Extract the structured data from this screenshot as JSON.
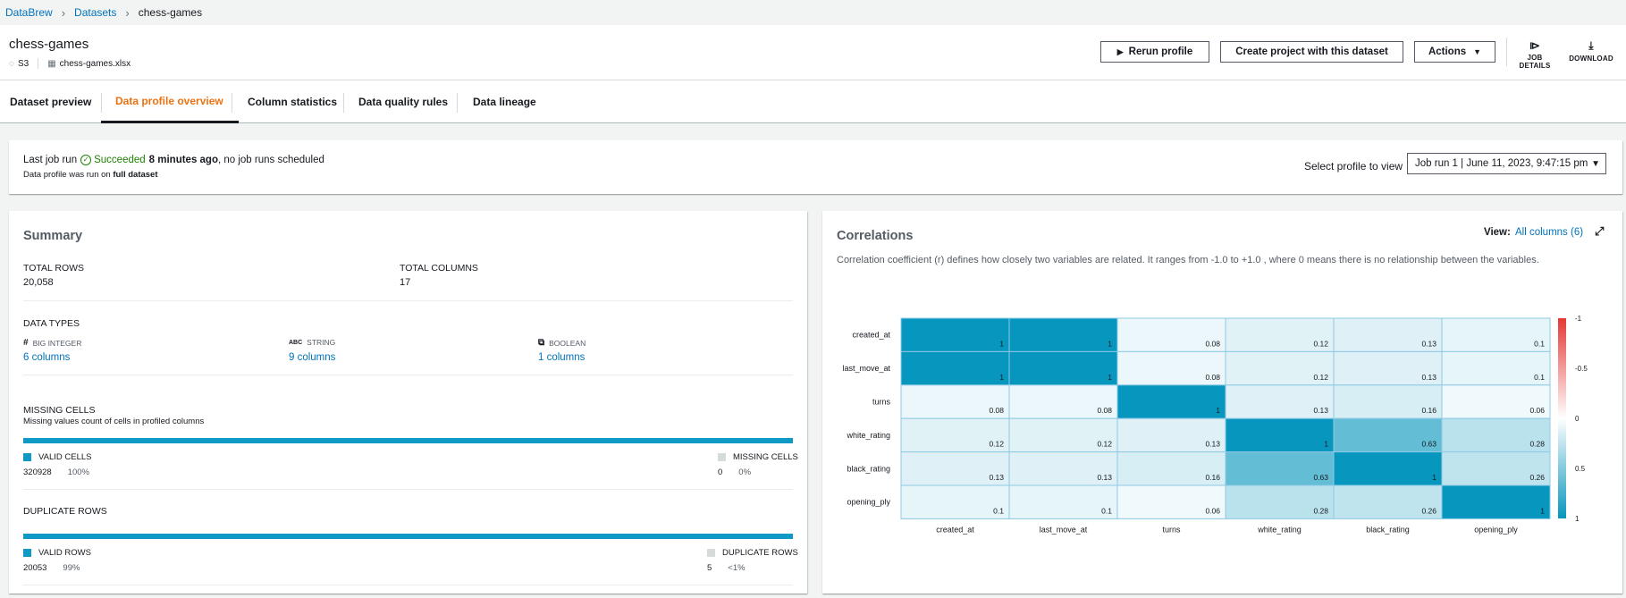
{
  "breadcrumb": [
    "DataBrew",
    "Datasets",
    "chess-games"
  ],
  "header": {
    "title": "chess-games",
    "source": "S3",
    "file": "chess-games.xlsx",
    "rerun_label": "Rerun profile",
    "create_label": "Create project with this dataset",
    "actions_label": "Actions",
    "job_details_label": "JOB DETAILS",
    "download_label": "DOWNLOAD"
  },
  "tabs": [
    "Dataset preview",
    "Data profile overview",
    "Column statistics",
    "Data quality rules",
    "Data lineage"
  ],
  "job": {
    "prefix": "Last job run",
    "status": "Succeeded",
    "ago": "8 minutes ago",
    "suffix": ", no job runs scheduled",
    "sub_prefix": "Data profile was run on",
    "sub_bold": "full dataset",
    "select_label": "Select profile to view",
    "select_value": "Job run 1 | June 11, 2023, 9:47:15 pm"
  },
  "summary": {
    "title": "Summary",
    "total_rows_label": "TOTAL ROWS",
    "total_rows": "20,058",
    "total_cols_label": "TOTAL COLUMNS",
    "total_cols": "17",
    "data_types_label": "DATA TYPES",
    "types": [
      {
        "icon": "#",
        "name": "BIG INTEGER",
        "count": "6 columns"
      },
      {
        "icon": "ABC",
        "name": "STRING",
        "count": "9 columns"
      },
      {
        "icon": "⧉",
        "name": "BOOLEAN",
        "count": "1 columns"
      }
    ],
    "missing_label": "MISSING CELLS",
    "missing_sub": "Missing values count of cells in profiled columns",
    "valid_cells_label": "VALID CELLS",
    "valid_cells": "320928",
    "valid_cells_pct": "100%",
    "missing_cells_label": "MISSING CELLS",
    "missing_cells": "0",
    "missing_cells_pct": "0%",
    "dup_label": "DUPLICATE ROWS",
    "valid_rows_label": "VALID ROWS",
    "valid_rows": "20053",
    "valid_rows_pct": "99%",
    "dup_rows_label": "DUPLICATE ROWS",
    "dup_rows": "5",
    "dup_rows_pct": "<1%"
  },
  "correlations": {
    "title": "Correlations",
    "view_label": "View:",
    "view_value": "All columns (6)",
    "description": "Correlation coefficient (r) defines how closely two variables are related. It ranges from -1.0 to +1.0 , where 0 means there is no relationship between the variables."
  },
  "chart_data": {
    "type": "heatmap",
    "rows": [
      "created_at",
      "last_move_at",
      "turns",
      "white_rating",
      "black_rating",
      "opening_ply"
    ],
    "columns": [
      "created_at",
      "last_move_at",
      "turns",
      "white_rating",
      "black_rating",
      "opening_ply"
    ],
    "values": [
      [
        1,
        1,
        0.08,
        0.12,
        0.13,
        0.1
      ],
      [
        1,
        1,
        0.08,
        0.12,
        0.13,
        0.1
      ],
      [
        0.08,
        0.08,
        1,
        0.13,
        0.16,
        0.06
      ],
      [
        0.12,
        0.12,
        0.13,
        1,
        0.63,
        0.28
      ],
      [
        0.13,
        0.13,
        0.16,
        0.63,
        1,
        0.26
      ],
      [
        0.1,
        0.1,
        0.06,
        0.28,
        0.26,
        1
      ]
    ],
    "scale_ticks": [
      "-1",
      "-0.5",
      "0",
      "0.5",
      "1"
    ],
    "range": [
      -1,
      1
    ],
    "colors": {
      "negative": "#e53935",
      "zero": "#ffffff",
      "positive": "#0796bd"
    }
  }
}
